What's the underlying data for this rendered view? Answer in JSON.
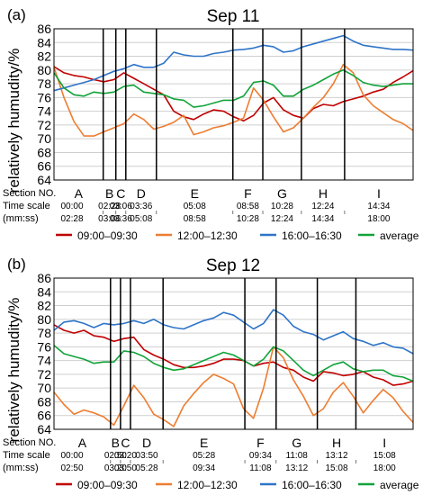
{
  "chart_data": [
    {
      "type": "line",
      "panel_label": "(a)",
      "title": "Sep 11",
      "ylabel": "relatively humudity/%",
      "xlabel": "",
      "ylim": [
        64,
        86
      ],
      "yticks": [
        "64",
        "66",
        "68",
        "70",
        "72",
        "74",
        "76",
        "78",
        "80",
        "82",
        "84",
        "86"
      ],
      "xlim_min": [
        0,
        18
      ],
      "grid": true,
      "legend_position": "bottom",
      "row_labels": {
        "section": "Section NO.",
        "time": "Time scale",
        "unit": "(mm:ss)"
      },
      "section_boundaries_min": [
        2.467,
        3.1,
        3.6,
        5.133,
        8.967,
        10.467,
        12.4,
        14.567
      ],
      "sections": [
        {
          "name": "A",
          "start": "00:00",
          "end": "02:28"
        },
        {
          "name": "B",
          "start": "02:28",
          "end": "03:06"
        },
        {
          "name": "C",
          "start": "03:06",
          "end": "03:36"
        },
        {
          "name": "D",
          "start": "03:36",
          "end": "05:08"
        },
        {
          "name": "E",
          "start": "05:08",
          "end": "08:58"
        },
        {
          "name": "F",
          "start": "08:58",
          "end": "10:28"
        },
        {
          "name": "G",
          "start": "10:28",
          "end": "12:24"
        },
        {
          "name": "H",
          "start": "12:24",
          "end": "14:34"
        },
        {
          "name": "I",
          "start": "14:34",
          "end": "18:00"
        }
      ],
      "x_min": [
        0,
        0.5,
        1,
        1.5,
        2,
        2.5,
        3,
        3.5,
        4,
        4.5,
        5,
        5.5,
        6,
        6.5,
        7,
        7.5,
        8,
        8.5,
        9,
        9.5,
        10,
        10.5,
        11,
        11.5,
        12,
        12.5,
        13,
        13.5,
        14,
        14.5,
        15,
        15.5,
        16,
        16.5,
        17,
        17.5,
        18
      ],
      "series": [
        {
          "name": "09:00–09:30",
          "color": "#c00000",
          "values": [
            80.5,
            79.6,
            79.2,
            79.0,
            78.6,
            78.3,
            78.6,
            79.6,
            78.8,
            78.0,
            77.2,
            76.4,
            74.0,
            73.2,
            72.8,
            73.6,
            74.2,
            74.0,
            73.2,
            72.6,
            73.4,
            75.2,
            76.0,
            74.2,
            73.4,
            73.0,
            74.4,
            75.0,
            74.8,
            75.4,
            75.8,
            76.2,
            76.8,
            77.2,
            78.2,
            79.0,
            79.9
          ]
        },
        {
          "name": "12:00–12:30",
          "color": "#ed7d31",
          "values": [
            80.4,
            76.0,
            72.5,
            70.4,
            70.4,
            71.0,
            71.6,
            72.2,
            73.6,
            72.8,
            71.4,
            71.8,
            72.4,
            73.4,
            70.6,
            71.0,
            71.6,
            71.9,
            72.4,
            73.0,
            77.4,
            75.6,
            73.2,
            71.0,
            71.6,
            73.0,
            74.6,
            76.0,
            78.0,
            80.8,
            79.6,
            76.4,
            74.8,
            73.8,
            72.8,
            72.2,
            71.2
          ]
        },
        {
          "name": "16:00–16:30",
          "color": "#2e74c8",
          "values": [
            77.0,
            77.4,
            77.8,
            78.2,
            78.6,
            79.2,
            79.8,
            80.2,
            80.8,
            80.4,
            80.4,
            81.0,
            82.6,
            82.2,
            82.0,
            82.0,
            82.4,
            82.6,
            82.9,
            83.0,
            83.2,
            83.6,
            83.4,
            82.6,
            82.8,
            83.4,
            83.8,
            84.2,
            84.6,
            85.0,
            84.2,
            83.6,
            83.4,
            83.2,
            83.0,
            83.0,
            82.9
          ]
        },
        {
          "name": "average",
          "color": "#12a33a",
          "values": [
            79.6,
            77.4,
            76.4,
            76.2,
            76.8,
            76.6,
            76.8,
            77.6,
            77.8,
            76.8,
            76.6,
            76.4,
            75.8,
            75.6,
            74.6,
            74.8,
            75.2,
            75.6,
            75.6,
            76.2,
            78.2,
            78.4,
            77.8,
            76.2,
            76.2,
            77.2,
            77.8,
            78.6,
            79.4,
            80.0,
            79.2,
            78.2,
            77.8,
            77.6,
            77.8,
            78.0,
            78.0
          ]
        }
      ]
    },
    {
      "type": "line",
      "panel_label": "(b)",
      "title": "Sep 12",
      "ylabel": "relatively humudity/%",
      "xlabel": "",
      "ylim": [
        64,
        86
      ],
      "yticks": [
        "64",
        "66",
        "68",
        "70",
        "72",
        "74",
        "76",
        "78",
        "80",
        "82",
        "84",
        "86"
      ],
      "xlim_min": [
        0,
        18
      ],
      "grid": true,
      "legend_position": "bottom",
      "row_labels": {
        "section": "Section NO.",
        "time": "Time scale",
        "unit": "(mm:ss)"
      },
      "section_boundaries_min": [
        2.833,
        3.333,
        3.833,
        5.467,
        9.567,
        11.133,
        13.2,
        15.133
      ],
      "sections": [
        {
          "name": "A",
          "start": "00:00",
          "end": "02:50"
        },
        {
          "name": "B",
          "start": "02:50",
          "end": "03:20"
        },
        {
          "name": "C",
          "start": "03:20",
          "end": "03:50"
        },
        {
          "name": "D",
          "start": "03:50",
          "end": "05:28"
        },
        {
          "name": "E",
          "start": "05:28",
          "end": "09:34"
        },
        {
          "name": "F",
          "start": "09:34",
          "end": "11:08"
        },
        {
          "name": "G",
          "start": "11:08",
          "end": "13:12"
        },
        {
          "name": "H",
          "start": "13:12",
          "end": "15:08"
        },
        {
          "name": "I",
          "start": "15:08",
          "end": "18:00"
        }
      ],
      "x_min": [
        0,
        0.5,
        1,
        1.5,
        2,
        2.5,
        3,
        3.5,
        4,
        4.5,
        5,
        5.5,
        6,
        6.5,
        7,
        7.5,
        8,
        8.5,
        9,
        9.5,
        10,
        10.5,
        11,
        11.5,
        12,
        12.5,
        13,
        13.5,
        14,
        14.5,
        15,
        15.5,
        16,
        16.5,
        17,
        17.5,
        18
      ],
      "series": [
        {
          "name": "09:00–09:30",
          "color": "#c00000",
          "values": [
            79.2,
            78.4,
            78.0,
            78.4,
            77.6,
            77.4,
            76.8,
            77.2,
            77.4,
            75.6,
            74.8,
            74.2,
            73.4,
            73.0,
            73.0,
            73.2,
            73.6,
            74.2,
            74.2,
            74.0,
            73.2,
            73.6,
            73.8,
            73.0,
            72.6,
            71.6,
            71.0,
            72.4,
            72.2,
            71.8,
            72.0,
            72.4,
            71.6,
            71.2,
            70.4,
            70.6,
            71.0
          ]
        },
        {
          "name": "12:00–12:30",
          "color": "#ed7d31",
          "values": [
            69.4,
            67.6,
            66.2,
            66.8,
            66.4,
            65.8,
            64.6,
            67.4,
            70.4,
            68.6,
            66.2,
            65.4,
            64.4,
            67.4,
            69.2,
            70.8,
            72.0,
            71.4,
            70.6,
            67.0,
            65.6,
            70.0,
            76.0,
            74.4,
            71.2,
            68.8,
            66.0,
            67.0,
            69.4,
            70.8,
            68.8,
            66.4,
            68.2,
            69.8,
            68.6,
            66.6,
            65.0
          ]
        },
        {
          "name": "16:00–16:30",
          "color": "#2e74c8",
          "values": [
            78.4,
            79.6,
            79.8,
            79.4,
            78.8,
            79.4,
            79.2,
            79.4,
            79.8,
            79.4,
            80.0,
            79.2,
            78.8,
            78.6,
            79.2,
            79.8,
            80.2,
            81.0,
            80.6,
            79.6,
            78.6,
            79.4,
            81.4,
            80.6,
            79.0,
            78.2,
            77.8,
            77.0,
            77.6,
            78.2,
            77.2,
            76.8,
            76.2,
            76.6,
            76.0,
            75.8,
            75.0
          ]
        },
        {
          "name": "average",
          "color": "#12a33a",
          "values": [
            76.2,
            75.0,
            74.6,
            74.2,
            73.6,
            73.8,
            73.8,
            75.4,
            75.2,
            74.6,
            73.6,
            73.0,
            72.6,
            72.8,
            73.4,
            74.0,
            74.6,
            75.2,
            74.8,
            74.0,
            73.2,
            74.2,
            76.0,
            75.4,
            74.0,
            72.6,
            71.8,
            72.6,
            73.4,
            73.8,
            72.8,
            72.4,
            72.6,
            72.6,
            71.8,
            71.6,
            71.0
          ]
        }
      ]
    }
  ]
}
